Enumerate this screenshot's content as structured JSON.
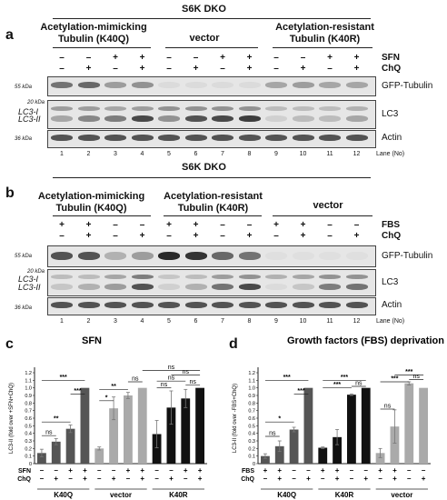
{
  "panel_a": {
    "label": "a",
    "header": "S6K DKO",
    "groups": [
      "Acetylation-mimicking\nTubulin (K40Q)",
      "vector",
      "Acetylation-resistant\nTubulin (K40R)"
    ],
    "treatment_rows": [
      {
        "label": "SFN",
        "signs": [
          "–",
          "–",
          "+",
          "+",
          "–",
          "–",
          "+",
          "+",
          "–",
          "–",
          "+",
          "+"
        ]
      },
      {
        "label": "ChQ",
        "signs": [
          "–",
          "+",
          "–",
          "+",
          "–",
          "+",
          "–",
          "+",
          "–",
          "+",
          "–",
          "+"
        ]
      }
    ],
    "markers": {
      "mw55": "55 kDa",
      "mw20": "20 kDa",
      "mw36": "36 kDa",
      "lc3i": "LC3-I",
      "lc3ii": "LC3-II"
    },
    "blots": {
      "gfp": "GFP-Tubulin",
      "lc3": "LC3",
      "actin": "Actin"
    },
    "lanes": [
      "1",
      "2",
      "3",
      "4",
      "5",
      "6",
      "7",
      "8",
      "9",
      "10",
      "11",
      "12"
    ],
    "lane_header": "Lane (No)"
  },
  "panel_b": {
    "label": "b",
    "header": "S6K DKO",
    "groups": [
      "Acetylation-mimicking\nTubulin (K40Q)",
      "Acetylation-resistant\nTubulin (K40R)",
      "vector"
    ],
    "treatment_rows": [
      {
        "label": "FBS",
        "signs": [
          "+",
          "+",
          "–",
          "–",
          "+",
          "+",
          "–",
          "–",
          "+",
          "+",
          "–",
          "–"
        ]
      },
      {
        "label": "ChQ",
        "signs": [
          "–",
          "+",
          "–",
          "+",
          "–",
          "+",
          "–",
          "+",
          "–",
          "+",
          "–",
          "+"
        ]
      }
    ],
    "markers": {
      "mw55": "55 kDa",
      "mw20": "20 kDa",
      "mw36": "36 kDa",
      "lc3i": "LC3-I",
      "lc3ii": "LC3-II"
    },
    "blots": {
      "gfp": "GFP-Tubulin",
      "lc3": "LC3",
      "actin": "Actin"
    },
    "lanes": [
      "1",
      "2",
      "3",
      "4",
      "5",
      "6",
      "7",
      "8",
      "9",
      "10",
      "11",
      "12"
    ],
    "lane_header": "Lane (No)"
  },
  "chart_data": [
    {
      "panel": "c",
      "type": "bar",
      "title": "SFN",
      "ylabel": "LC3-II (fold over +SFN+ChQ)",
      "ylim": [
        0,
        1.2
      ],
      "yticks": [
        "0",
        "0.1",
        "0.2",
        "0.3",
        "0.4",
        "0.5",
        "0.6",
        "0.7",
        "0.8",
        "0.9",
        "1.0",
        "1.1",
        "1.2"
      ],
      "group_labels": [
        "K40Q",
        "vector",
        "K40R"
      ],
      "rows": [
        {
          "label": "SFN",
          "signs": [
            "–",
            "–",
            "+",
            "+",
            "–",
            "–",
            "+",
            "+",
            "–",
            "–",
            "+",
            "+"
          ]
        },
        {
          "label": "ChQ",
          "signs": [
            "–",
            "+",
            "–",
            "+",
            "–",
            "+",
            "–",
            "+",
            "–",
            "+",
            "–",
            "+"
          ]
        }
      ],
      "values": [
        0.14,
        0.29,
        0.46,
        1.0,
        0.2,
        0.73,
        0.9,
        1.0,
        0.39,
        0.74,
        0.86,
        1.0
      ],
      "errors": [
        0.05,
        0.04,
        0.05,
        0.0,
        0.02,
        0.15,
        0.04,
        0.0,
        0.18,
        0.22,
        0.12,
        0.0
      ],
      "colors": [
        "#555555",
        "#555555",
        "#555555",
        "#555555",
        "#aaaaaa",
        "#aaaaaa",
        "#aaaaaa",
        "#aaaaaa",
        "#111111",
        "#111111",
        "#111111",
        "#111111"
      ],
      "annotations": [
        {
          "from": 0,
          "to": 1,
          "y": 0.37,
          "text": "ns"
        },
        {
          "from": 0,
          "to": 2,
          "y": 0.55,
          "text": "**"
        },
        {
          "from": 0,
          "to": 3,
          "y": 1.1,
          "text": "***"
        },
        {
          "from": 2,
          "to": 3,
          "y": 0.92,
          "text": "***"
        },
        {
          "from": 4,
          "to": 5,
          "y": 0.83,
          "text": "*"
        },
        {
          "from": 4,
          "to": 6,
          "y": 0.98,
          "text": "**"
        },
        {
          "from": 6,
          "to": 7,
          "y": 1.08,
          "text": "ns"
        },
        {
          "from": 8,
          "to": 9,
          "y": 1.0,
          "text": "ns"
        },
        {
          "from": 8,
          "to": 10,
          "y": 1.09,
          "text": "ns"
        },
        {
          "from": 9,
          "to": 11,
          "y": 1.17,
          "text": "ns"
        },
        {
          "from": 10,
          "to": 11,
          "y": 1.04,
          "text": "ns"
        },
        {
          "from": 7,
          "to": 11,
          "y": 1.23,
          "text": "ns"
        }
      ]
    },
    {
      "panel": "d",
      "type": "bar",
      "title": "Growth factors (FBS) deprivation",
      "ylabel": "LC3-II (fold over -FBS+ChQ)",
      "ylim": [
        0,
        1.2
      ],
      "yticks": [
        "0",
        "0.1",
        "0.2",
        "0.3",
        "0.4",
        "0.5",
        "0.6",
        "0.7",
        "0.8",
        "0.9",
        "1.0",
        "1.1",
        "1.2"
      ],
      "group_labels": [
        "K40Q",
        "K40R",
        "vector"
      ],
      "rows": [
        {
          "label": "FBS",
          "signs": [
            "+",
            "+",
            "–",
            "–",
            "+",
            "+",
            "–",
            "–",
            "+",
            "+",
            "–",
            "–"
          ]
        },
        {
          "label": "ChQ",
          "signs": [
            "–",
            "+",
            "–",
            "+",
            "–",
            "+",
            "–",
            "+",
            "–",
            "+",
            "–",
            "+"
          ]
        }
      ],
      "values": [
        0.1,
        0.23,
        0.45,
        1.0,
        0.21,
        0.35,
        0.91,
        1.0,
        0.14,
        0.49,
        1.06,
        1.0
      ],
      "errors": [
        0.03,
        0.07,
        0.03,
        0.0,
        0.01,
        0.1,
        0.01,
        0.0,
        0.06,
        0.22,
        0.02,
        0.0
      ],
      "colors": [
        "#555555",
        "#555555",
        "#555555",
        "#555555",
        "#111111",
        "#111111",
        "#111111",
        "#111111",
        "#aaaaaa",
        "#aaaaaa",
        "#aaaaaa",
        "#aaaaaa"
      ],
      "annotations": [
        {
          "from": 0,
          "to": 1,
          "y": 0.36,
          "text": "ns"
        },
        {
          "from": 0,
          "to": 2,
          "y": 0.55,
          "text": "*"
        },
        {
          "from": 0,
          "to": 3,
          "y": 1.1,
          "text": "***"
        },
        {
          "from": 2,
          "to": 3,
          "y": 0.92,
          "text": "***"
        },
        {
          "from": 4,
          "to": 6,
          "y": 1.0,
          "text": "***"
        },
        {
          "from": 4,
          "to": 7,
          "y": 1.1,
          "text": "***"
        },
        {
          "from": 6,
          "to": 7,
          "y": 1.02,
          "text": "ns"
        },
        {
          "from": 8,
          "to": 9,
          "y": 0.72,
          "text": "ns"
        },
        {
          "from": 8,
          "to": 10,
          "y": 1.08,
          "text": "***"
        },
        {
          "from": 9,
          "to": 11,
          "y": 1.17,
          "text": "***"
        },
        {
          "from": 10,
          "to": 11,
          "y": 1.11,
          "text": "ns"
        }
      ]
    }
  ]
}
